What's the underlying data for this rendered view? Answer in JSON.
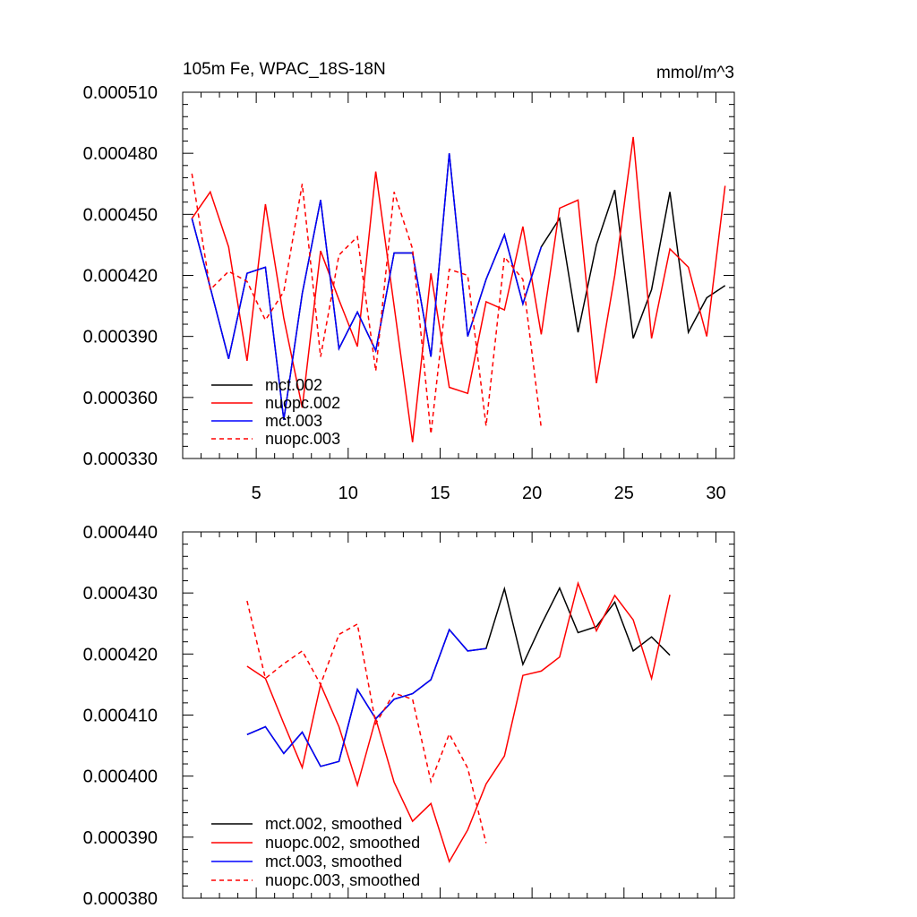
{
  "chart_data": [
    {
      "type": "line",
      "title": "105m Fe, WPAC_18S-18N",
      "units": "mmol/m^3",
      "xlabel": "",
      "ylabel": "",
      "xlim": [
        1,
        31
      ],
      "ylim": [
        0.00033,
        0.00051
      ],
      "xticks": [
        5,
        10,
        15,
        20,
        25,
        30
      ],
      "yticks": [
        "0.000330",
        "0.000360",
        "0.000390",
        "0.000420",
        "0.000450",
        "0.000480",
        "0.000510"
      ],
      "legend_position": "bottom-left",
      "series": [
        {
          "name": "mct.002",
          "color": "#000000",
          "dash": "solid",
          "x": [
            1.5,
            2.5,
            3.5,
            4.5,
            5.5,
            6.5,
            7.5,
            8.5,
            9.5,
            10.5,
            11.5,
            12.5,
            13.5,
            14.5,
            15.5,
            16.5,
            17.5,
            18.5,
            19.5,
            20.5,
            21.5,
            22.5,
            23.5,
            24.5,
            25.5,
            26.5,
            27.5,
            28.5,
            29.5,
            30.5
          ],
          "values": [
            0.000448,
            0.000414,
            0.000379,
            0.000421,
            0.000424,
            0.000349,
            0.000411,
            0.000457,
            0.000384,
            0.000402,
            0.000383,
            0.000431,
            0.000431,
            0.00038,
            0.00048,
            0.00039,
            0.000418,
            0.00044,
            0.000406,
            0.000434,
            0.000448,
            0.000392,
            0.000435,
            0.000462,
            0.000389,
            0.000413,
            0.000461,
            0.000392,
            0.000409,
            0.000415
          ]
        },
        {
          "name": "nuopc.002",
          "color": "#ff0000",
          "dash": "solid",
          "x": [
            1.5,
            2.5,
            3.5,
            4.5,
            5.5,
            6.5,
            7.5,
            8.5,
            9.5,
            10.5,
            11.5,
            12.5,
            13.5,
            14.5,
            15.5,
            16.5,
            17.5,
            18.5,
            19.5,
            20.5,
            21.5,
            22.5,
            23.5,
            24.5,
            25.5,
            26.5,
            27.5,
            28.5,
            29.5,
            30.5
          ],
          "values": [
            0.000448,
            0.000461,
            0.000434,
            0.000378,
            0.000455,
            0.000399,
            0.000355,
            0.000432,
            0.000408,
            0.000385,
            0.000471,
            0.000405,
            0.000338,
            0.000421,
            0.000365,
            0.000362,
            0.000407,
            0.000403,
            0.000444,
            0.000391,
            0.000453,
            0.000457,
            0.000367,
            0.00042,
            0.000488,
            0.000389,
            0.000433,
            0.000424,
            0.00039,
            0.000464
          ]
        },
        {
          "name": "mct.003",
          "color": "#0000ff",
          "dash": "solid",
          "x": [
            1.5,
            2.5,
            3.5,
            4.5,
            5.5,
            6.5,
            7.5,
            8.5,
            9.5,
            10.5,
            11.5,
            12.5,
            13.5,
            14.5,
            15.5,
            16.5,
            17.5,
            18.5,
            19.5,
            20.5
          ],
          "values": [
            0.000448,
            0.000414,
            0.000379,
            0.000421,
            0.000424,
            0.000349,
            0.000411,
            0.000457,
            0.000384,
            0.000402,
            0.000383,
            0.000431,
            0.000431,
            0.00038,
            0.00048,
            0.00039,
            0.000418,
            0.00044,
            0.000406,
            0.000434
          ]
        },
        {
          "name": "nuopc.003",
          "color": "#ff0000",
          "dash": "dashed",
          "x": [
            1.5,
            2.5,
            3.5,
            4.5,
            5.5,
            6.5,
            7.5,
            8.5,
            9.5,
            10.5,
            11.5,
            12.5,
            13.5,
            14.5,
            15.5,
            16.5,
            17.5,
            18.5,
            19.5,
            20.5
          ],
          "values": [
            0.00047,
            0.000413,
            0.000422,
            0.000417,
            0.000398,
            0.000412,
            0.000465,
            0.00038,
            0.00043,
            0.000439,
            0.000373,
            0.000461,
            0.000433,
            0.000342,
            0.000423,
            0.00042,
            0.000346,
            0.000429,
            0.000418,
            0.000345
          ]
        }
      ]
    },
    {
      "type": "line",
      "title": "",
      "xlabel": "",
      "ylabel": "",
      "xlim": [
        1,
        31
      ],
      "ylim": [
        0.00038,
        0.00044
      ],
      "xticks": [
        5,
        10,
        15,
        20,
        25,
        30
      ],
      "yticks": [
        "0.000380",
        "0.000390",
        "0.000400",
        "0.000410",
        "0.000420",
        "0.000430",
        "0.000440"
      ],
      "legend_position": "bottom-left",
      "series": [
        {
          "name": "mct.002, smoothed",
          "color": "#000000",
          "dash": "solid",
          "x": [
            4.5,
            5.5,
            6.5,
            7.5,
            8.5,
            9.5,
            10.5,
            11.5,
            12.5,
            13.5,
            14.5,
            15.5,
            16.5,
            17.5,
            18.5,
            19.5,
            20.5,
            21.5,
            22.5,
            23.5,
            24.5,
            25.5,
            26.5,
            27.5
          ],
          "values": [
            0.0004068,
            0.0004081,
            0.0004037,
            0.0004072,
            0.0004016,
            0.0004024,
            0.0004142,
            0.0004094,
            0.0004126,
            0.0004135,
            0.0004158,
            0.000424,
            0.0004205,
            0.0004209,
            0.0004307,
            0.0004183,
            0.0004248,
            0.0004308,
            0.0004235,
            0.0004245,
            0.0004285,
            0.0004205,
            0.0004228,
            0.0004198
          ]
        },
        {
          "name": "nuopc.002, smoothed",
          "color": "#ff0000",
          "dash": "solid",
          "x": [
            4.5,
            5.5,
            6.5,
            7.5,
            8.5,
            9.5,
            10.5,
            11.5,
            12.5,
            13.5,
            14.5,
            15.5,
            16.5,
            17.5,
            18.5,
            19.5,
            20.5,
            21.5,
            22.5,
            23.5,
            24.5,
            25.5,
            26.5,
            27.5
          ],
          "values": [
            0.000418,
            0.000416,
            0.0004086,
            0.0004014,
            0.000415,
            0.0004081,
            0.0003985,
            0.0004094,
            0.000399,
            0.0003926,
            0.0003955,
            0.000386,
            0.0003912,
            0.0003987,
            0.0004033,
            0.0004165,
            0.0004172,
            0.0004195,
            0.0004316,
            0.0004238,
            0.0004296,
            0.0004256,
            0.000416,
            0.0004297
          ]
        },
        {
          "name": "mct.003, smoothed",
          "color": "#0000ff",
          "dash": "solid",
          "x": [
            4.5,
            5.5,
            6.5,
            7.5,
            8.5,
            9.5,
            10.5,
            11.5,
            12.5,
            13.5,
            14.5,
            15.5,
            16.5,
            17.5
          ],
          "values": [
            0.0004068,
            0.0004081,
            0.0004037,
            0.0004072,
            0.0004016,
            0.0004024,
            0.0004142,
            0.0004094,
            0.0004126,
            0.0004135,
            0.0004158,
            0.000424,
            0.0004205,
            0.0004209
          ]
        },
        {
          "name": "nuopc.003, smoothed",
          "color": "#ff0000",
          "dash": "dashed",
          "x": [
            4.5,
            5.5,
            6.5,
            7.5,
            8.5,
            9.5,
            10.5,
            11.5,
            12.5,
            13.5,
            14.5,
            15.5,
            16.5,
            17.5
          ],
          "values": [
            0.0004287,
            0.000416,
            0.0004184,
            0.0004205,
            0.000415,
            0.0004232,
            0.0004249,
            0.0004086,
            0.0004136,
            0.0004126,
            0.0003991,
            0.0004069,
            0.0004013,
            0.000389
          ]
        }
      ]
    }
  ]
}
